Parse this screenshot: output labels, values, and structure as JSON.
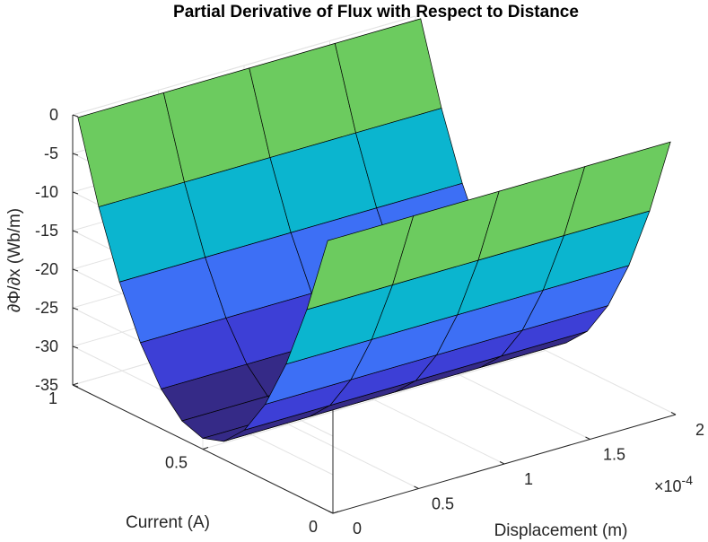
{
  "chart_data": {
    "type": "surface",
    "title": "Partial Derivative of Flux with Respect to Distance",
    "xlabel": "Displacement (m)",
    "ylabel": "Current (A)",
    "zlabel": "∂Φ/∂x (Wb/m)",
    "x_exponent_label": "×10",
    "x_exponent_power": "-4",
    "x_ticks": [
      "0",
      "0.5",
      "1",
      "1.5",
      "2"
    ],
    "y_ticks": [
      "0",
      "0.5",
      "1"
    ],
    "z_ticks": [
      "0",
      "-5",
      "-10",
      "-15",
      "-20",
      "-25",
      "-30",
      "-35"
    ],
    "xlim": [
      0,
      0.0002
    ],
    "ylim": [
      0,
      1
    ],
    "zlim": [
      -35,
      0
    ],
    "x": [
      0,
      5e-05,
      0.0001,
      0.00015,
      0.0002
    ],
    "y": [
      0,
      0.25,
      0.5,
      0.75,
      1
    ],
    "z_by_current": [
      [
        0,
        0,
        0,
        0,
        0
      ],
      [
        -2.1,
        -2.1,
        -2.1,
        -2.1,
        -2.1
      ],
      [
        -8.4,
        -8.4,
        -8.4,
        -8.4,
        -8.4
      ],
      [
        -18.9,
        -18.9,
        -18.9,
        -18.9,
        -18.9
      ],
      [
        -33.6,
        -33.6,
        -33.6,
        -33.6,
        -33.6
      ]
    ],
    "grid": true,
    "colormap": [
      "#352A87",
      "#3D3FD6",
      "#3D6FF5",
      "#1FA5E0",
      "#0BB5CF",
      "#6CCB5F",
      "#F9FB0E"
    ]
  }
}
